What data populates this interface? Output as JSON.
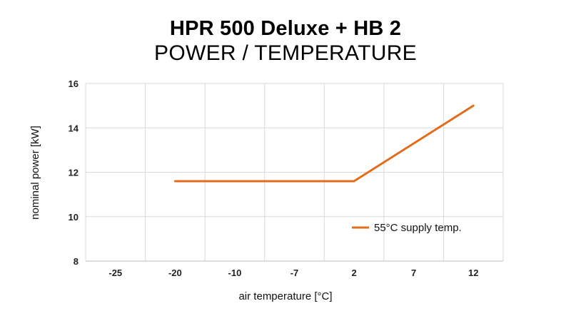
{
  "chart_data": {
    "type": "line",
    "title": "HPR 500 Deluxe + HB 2",
    "subtitle": "POWER / TEMPERATURE",
    "xlabel": "air temperature [°C]",
    "ylabel": "nominal power [kW]",
    "categories": [
      "-25",
      "-20",
      "-10",
      "-7",
      "2",
      "7",
      "12"
    ],
    "ylim": [
      8,
      16
    ],
    "yticks": [
      8,
      10,
      12,
      14,
      16
    ],
    "grid": true,
    "legend_position": "bottom-right",
    "series": [
      {
        "name": "55°C supply temp.",
        "color": "#e36c1b",
        "points": [
          {
            "x": "-20",
            "y": 11.6
          },
          {
            "x": "2",
            "y": 11.6
          },
          {
            "x": "12",
            "y": 15.0
          }
        ]
      }
    ]
  }
}
